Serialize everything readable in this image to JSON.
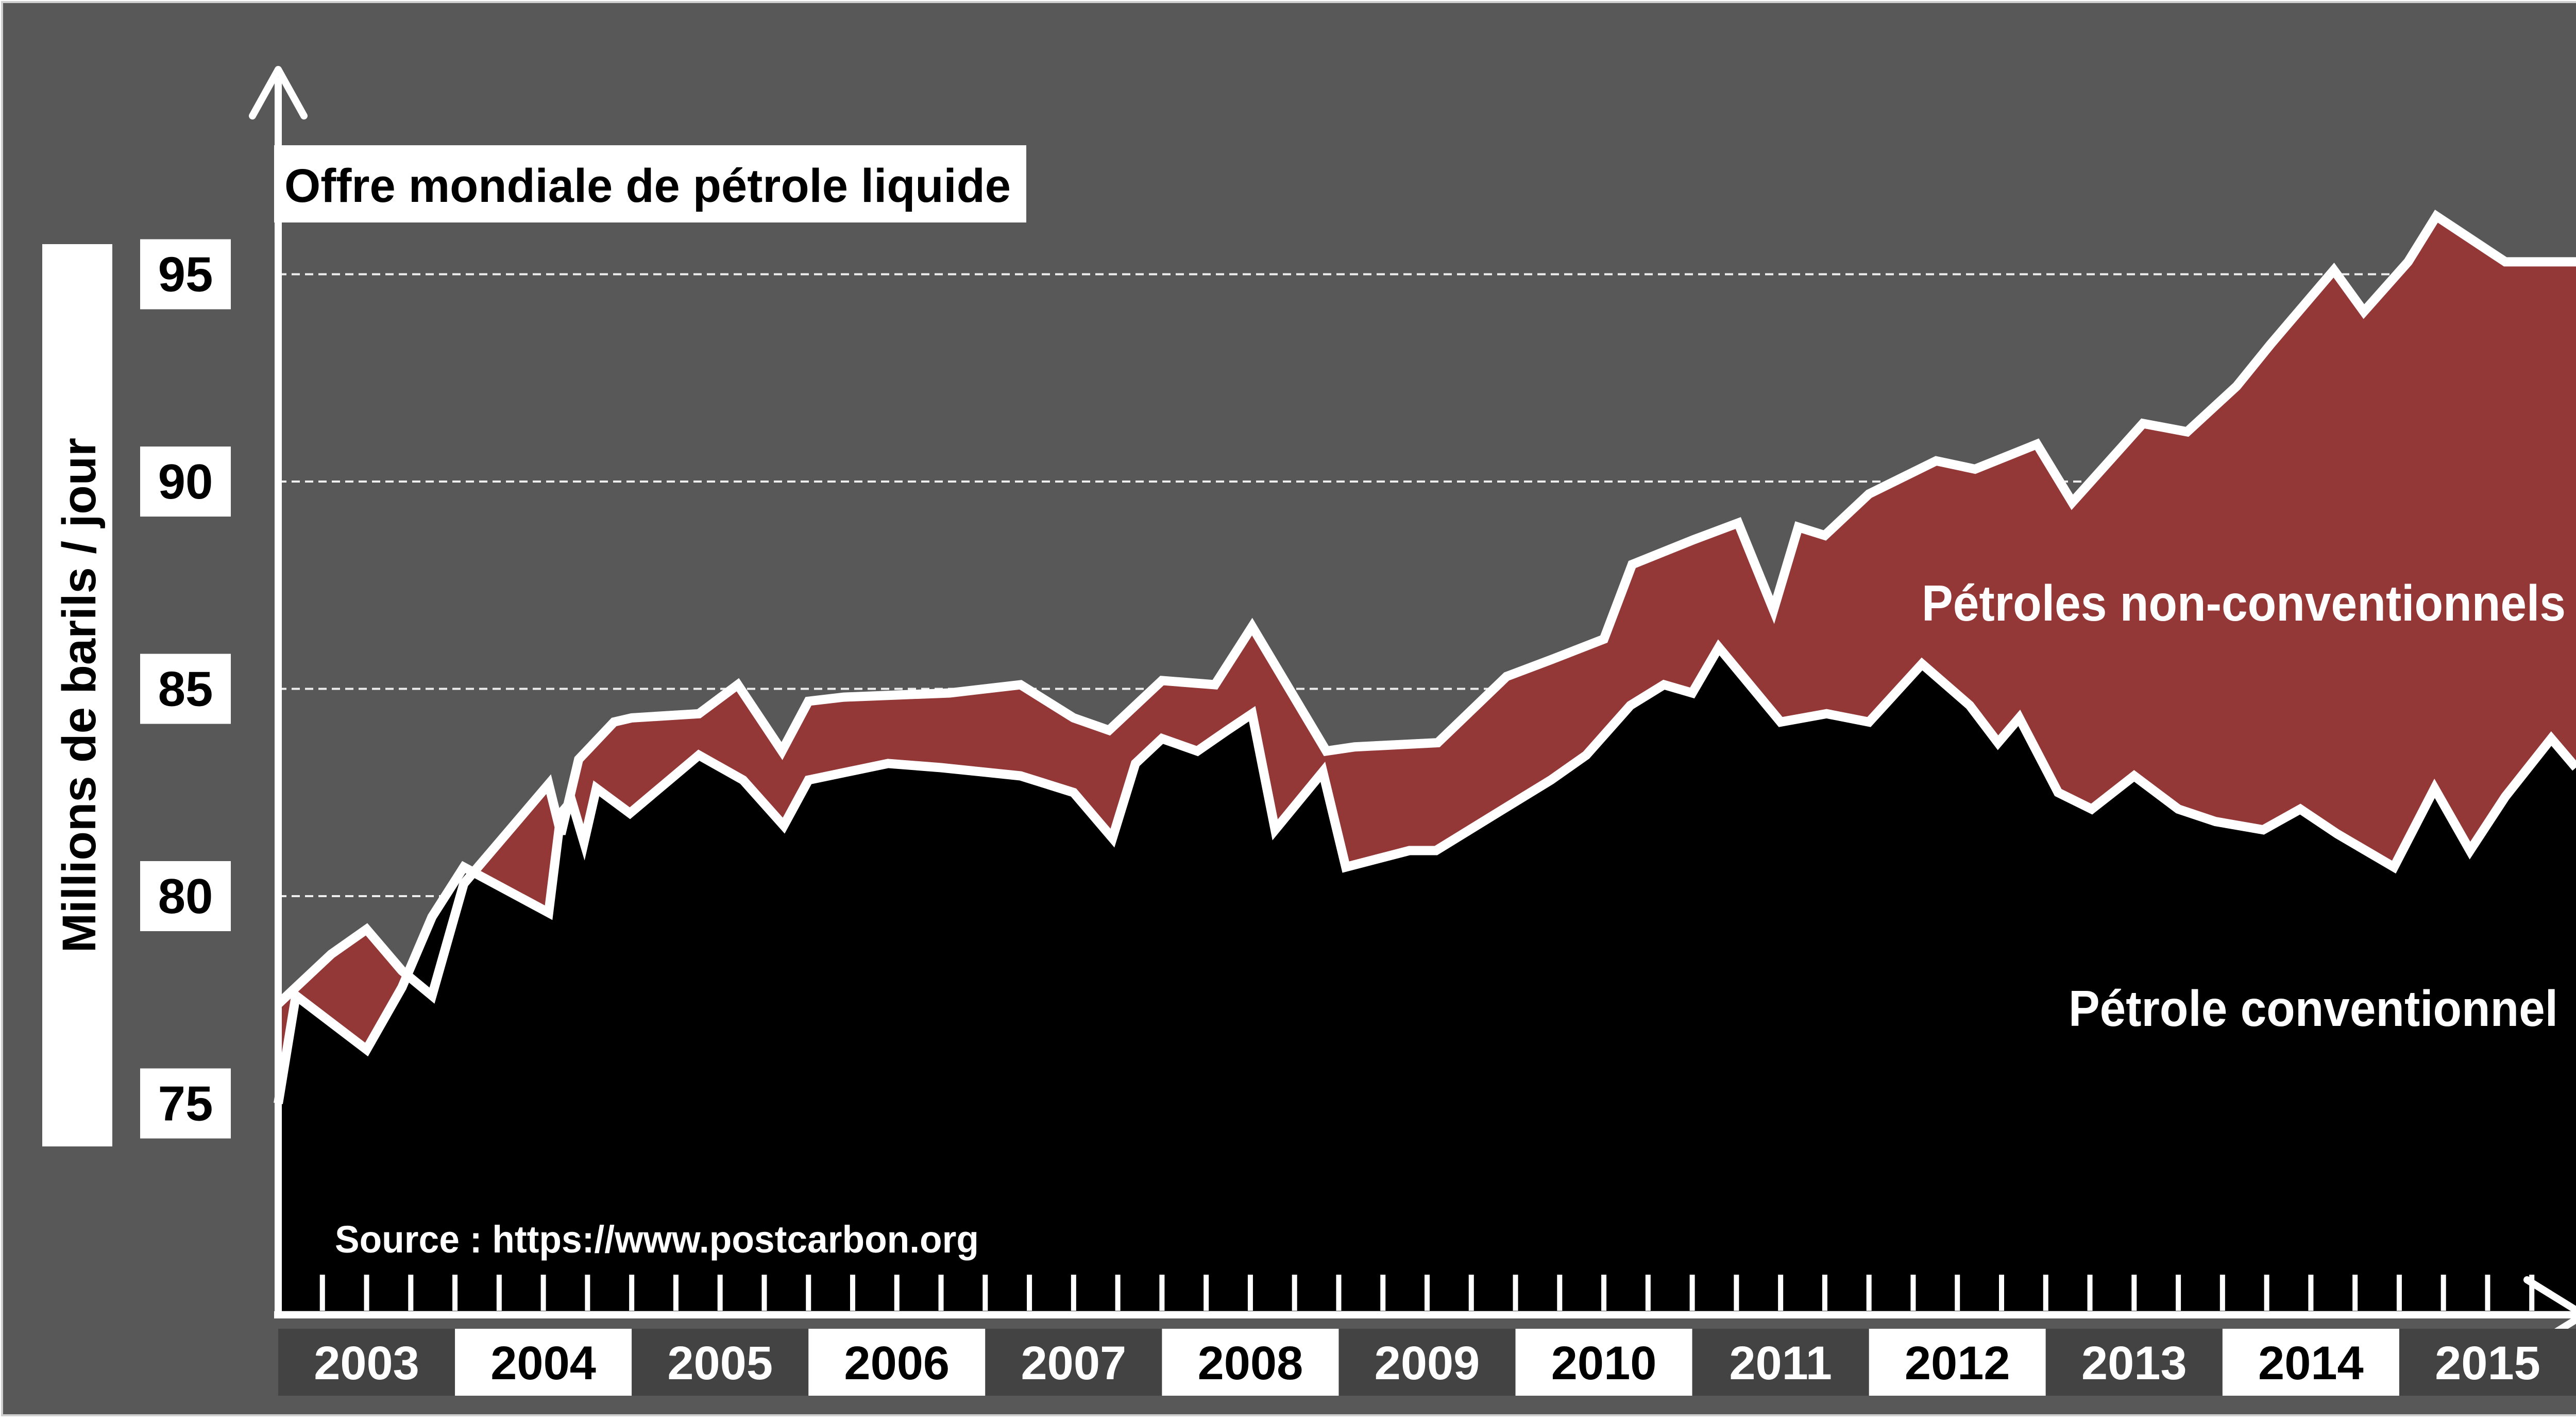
{
  "chart_data": {
    "type": "area",
    "title": "Offre mondiale de pétrole liquide",
    "ylabel": "Millions de barils / jour",
    "source": "Source : https://www.postcarbon.org",
    "ylim": [
      70,
      98
    ],
    "xlim": [
      2003,
      2016
    ],
    "y_ticks": [
      75,
      80,
      85,
      90,
      95
    ],
    "gridlines": [
      75,
      80,
      85,
      90,
      95
    ],
    "x_categories": [
      "2003",
      "2004",
      "2005",
      "2006",
      "2007",
      "2008",
      "2009",
      "2010",
      "2011",
      "2012",
      "2013",
      "2014",
      "2015"
    ],
    "colors": {
      "background": "#585858",
      "conventional": "#000000",
      "non_conventional": "#943737",
      "outline": "#ffffff",
      "year_dark": "#434343",
      "year_light": "#ffffff"
    },
    "series": [
      {
        "name": "Pétrole conventionnel",
        "x": [
          2003.0,
          2003.1,
          2003.5,
          2003.7,
          2003.87,
          2004.05,
          2004.53,
          2004.6,
          2004.66,
          2004.73,
          2004.8,
          2004.99,
          2005.38,
          2005.63,
          2005.86,
          2006.0,
          2006.45,
          2006.75,
          2007.2,
          2007.5,
          2007.72,
          2007.85,
          2008.0,
          2008.2,
          2008.37,
          2008.51,
          2008.64,
          2008.91,
          2009.04,
          2009.4,
          2009.55,
          2009.97,
          2010.2,
          2010.4,
          2010.65,
          2010.84,
          2011.0,
          2011.15,
          2011.5,
          2011.76,
          2012.0,
          2012.3,
          2012.57,
          2012.73,
          2012.85,
          2013.07,
          2013.26,
          2013.5,
          2013.75,
          2013.96,
          2014.23,
          2014.44,
          2014.65,
          2014.97,
          2015.2,
          2015.4,
          2015.6,
          2015.86,
          2016.0
        ],
        "y": [
          75.0,
          77.6,
          76.3,
          77.8,
          79.5,
          80.7,
          79.6,
          82.0,
          82.3,
          81.3,
          82.6,
          82.0,
          83.4,
          82.8,
          81.7,
          82.8,
          83.2,
          83.1,
          82.9,
          82.5,
          81.4,
          83.2,
          83.8,
          83.5,
          84.0,
          84.4,
          81.6,
          83.0,
          80.7,
          81.1,
          81.1,
          82.2,
          82.8,
          83.4,
          84.6,
          85.1,
          84.9,
          86.0,
          84.2,
          84.4,
          84.2,
          85.6,
          84.6,
          83.7,
          84.3,
          82.5,
          82.1,
          82.9,
          82.1,
          81.8,
          81.6,
          82.1,
          81.5,
          80.7,
          82.6,
          81.1,
          82.4,
          83.8,
          83.1
        ]
      },
      {
        "name": "Pétroles non-conventionnels",
        "x": [
          2003.0,
          2003.3,
          2003.5,
          2003.7,
          2003.87,
          2004.05,
          2004.53,
          2004.6,
          2004.7,
          2004.9,
          2005.0,
          2005.38,
          2005.6,
          2005.85,
          2006.0,
          2006.2,
          2006.8,
          2007.2,
          2007.5,
          2007.7,
          2008.0,
          2008.3,
          2008.51,
          2008.93,
          2009.09,
          2009.56,
          2009.95,
          2010.2,
          2010.5,
          2010.66,
          2011.01,
          2011.26,
          2011.46,
          2011.6,
          2011.75,
          2012.0,
          2012.38,
          2012.6,
          2012.95,
          2013.15,
          2013.55,
          2013.8,
          2014.08,
          2014.27,
          2014.63,
          2014.8,
          2015.05,
          2015.21,
          2015.6,
          2016.0
        ],
        "y": [
          77.4,
          78.6,
          79.2,
          78.2,
          77.6,
          80.3,
          82.7,
          81.5,
          83.3,
          84.2,
          84.3,
          84.4,
          85.1,
          83.5,
          84.7,
          84.8,
          84.9,
          85.1,
          84.3,
          84.0,
          85.2,
          85.1,
          86.5,
          83.5,
          83.6,
          83.7,
          85.3,
          85.7,
          86.2,
          88.0,
          88.6,
          89.0,
          86.9,
          88.9,
          88.7,
          89.7,
          90.5,
          90.3,
          90.9,
          89.5,
          91.4,
          91.2,
          92.3,
          93.3,
          95.1,
          94.1,
          95.3,
          96.4,
          95.3,
          95.3
        ]
      }
    ],
    "legend": "inline labels on areas"
  }
}
